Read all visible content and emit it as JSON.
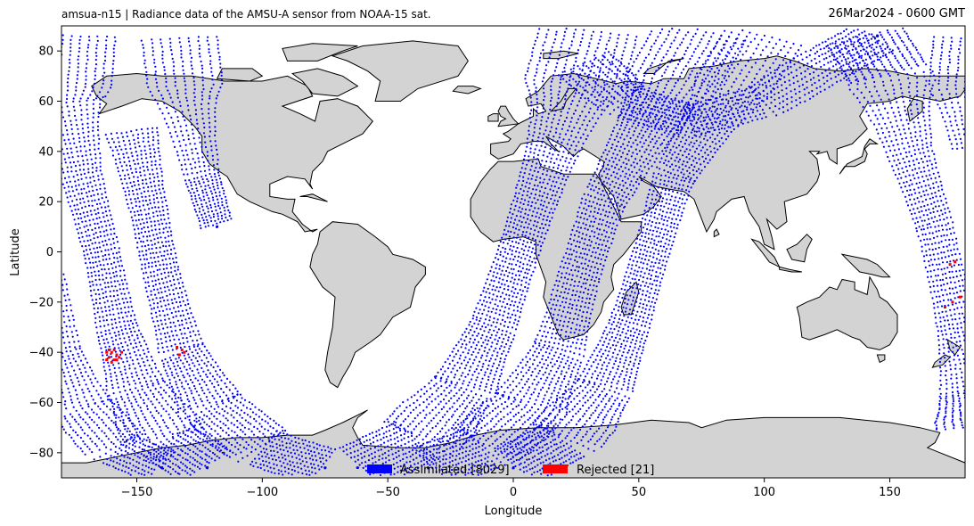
{
  "header": {
    "title_left": "amsua-n15  |  Radiance data of the AMSU-A sensor from NOAA-15 sat.",
    "title_right": "26Mar2024 - 0600 GMT"
  },
  "chart_data": {
    "type": "scatter",
    "xlabel": "Longitude",
    "ylabel": "Latitude",
    "xlim": [
      -180,
      180
    ],
    "ylim": [
      -90,
      90
    ],
    "xticks": [
      -150,
      -100,
      -50,
      0,
      50,
      100,
      150
    ],
    "yticks": [
      -80,
      -60,
      -40,
      -20,
      0,
      20,
      40,
      60,
      80
    ],
    "grid": false,
    "legend": {
      "placement": "bottom-center",
      "layout": "horizontal"
    },
    "basemap": {
      "land_color": "#d3d3d3",
      "coastline_color": "#000000",
      "ocean_color": "#ffffff"
    },
    "series": [
      {
        "name": "Assimilated [8029]",
        "color": "#0000ff",
        "count": 8029,
        "swaths": [
          {
            "track": [
              [
                -176,
                86
              ],
              [
                -178,
                60
              ],
              [
                -172,
                30
              ],
              [
                -164,
                0
              ],
              [
                -158,
                -30
              ],
              [
                -150,
                -55
              ],
              [
                -138,
                -75
              ],
              [
                -122,
                -86
              ]
            ],
            "width_deg": 14
          },
          {
            "track": [
              [
                -133,
                85
              ],
              [
                -130,
                60
              ],
              [
                -124,
                30
              ],
              [
                -118,
                10
              ]
            ],
            "width_deg": 12
          },
          {
            "track": [
              [
                -152,
                48
              ],
              [
                -146,
                20
              ],
              [
                -140,
                -10
              ],
              [
                -132,
                -40
              ],
              [
                -120,
                -62
              ],
              [
                -100,
                -78
              ],
              [
                -75,
                -86
              ]
            ],
            "width_deg": 14
          },
          {
            "track": [
              [
                -185,
                -10
              ],
              [
                -180,
                -40
              ],
              [
                -172,
                -62
              ],
              [
                -158,
                -78
              ],
              [
                -140,
                -86
              ]
            ],
            "width_deg": 12
          },
          {
            "track": [
              [
                30,
                88
              ],
              [
                22,
                60
              ],
              [
                12,
                30
              ],
              [
                2,
                0
              ],
              [
                -8,
                -30
              ],
              [
                -20,
                -55
              ],
              [
                -38,
                -75
              ],
              [
                -62,
                -86
              ]
            ],
            "width_deg": 16
          },
          {
            "track": [
              [
                75,
                88
              ],
              [
                62,
                65
              ],
              [
                50,
                45
              ],
              [
                36,
                20
              ],
              [
                26,
                -10
              ],
              [
                18,
                -40
              ],
              [
                6,
                -62
              ],
              [
                -12,
                -78
              ],
              [
                -34,
                -86
              ]
            ],
            "width_deg": 16
          },
          {
            "track": [
              [
                100,
                86
              ],
              [
                80,
                55
              ],
              [
                64,
                30
              ],
              [
                55,
                0
              ],
              [
                46,
                -30
              ],
              [
                36,
                -55
              ],
              [
                20,
                -75
              ],
              [
                0,
                -86
              ]
            ],
            "width_deg": 14
          },
          {
            "track": [
              [
                28,
                75
              ],
              [
                45,
                60
              ],
              [
                70,
                52
              ],
              [
                100,
                60
              ],
              [
                125,
                75
              ],
              [
                145,
                86
              ]
            ],
            "width_deg": 12
          },
          {
            "track": [
              [
                140,
                86
              ],
              [
                150,
                70
              ],
              [
                158,
                40
              ],
              [
                168,
                10
              ],
              [
                176,
                -25
              ],
              [
                182,
                -55
              ],
              [
                186,
                -70
              ]
            ],
            "width_deg": 14
          },
          {
            "track": [
              [
                180,
                85
              ],
              [
                178,
                65
              ],
              [
                182,
                40
              ]
            ],
            "width_deg": 10
          }
        ]
      },
      {
        "name": "Rejected [21]",
        "color": "#ff0000",
        "count": 21,
        "points": [
          [
            -162,
            -40
          ],
          [
            -161,
            -42
          ],
          [
            -160,
            -40
          ],
          [
            -159,
            -43
          ],
          [
            -158,
            -41
          ],
          [
            -157,
            -42
          ],
          [
            -162,
            -43
          ],
          [
            -160,
            -44
          ],
          [
            -161,
            -39
          ],
          [
            -158,
            -43
          ],
          [
            -156,
            -40
          ],
          [
            -159,
            -39
          ],
          [
            -134,
            -38
          ],
          [
            -132,
            -39
          ],
          [
            -131,
            -40
          ],
          [
            -133,
            -41
          ],
          [
            174,
            -5
          ],
          [
            176,
            -4
          ],
          [
            175,
            -20
          ],
          [
            178,
            -18
          ],
          [
            172,
            -22
          ]
        ]
      }
    ]
  }
}
